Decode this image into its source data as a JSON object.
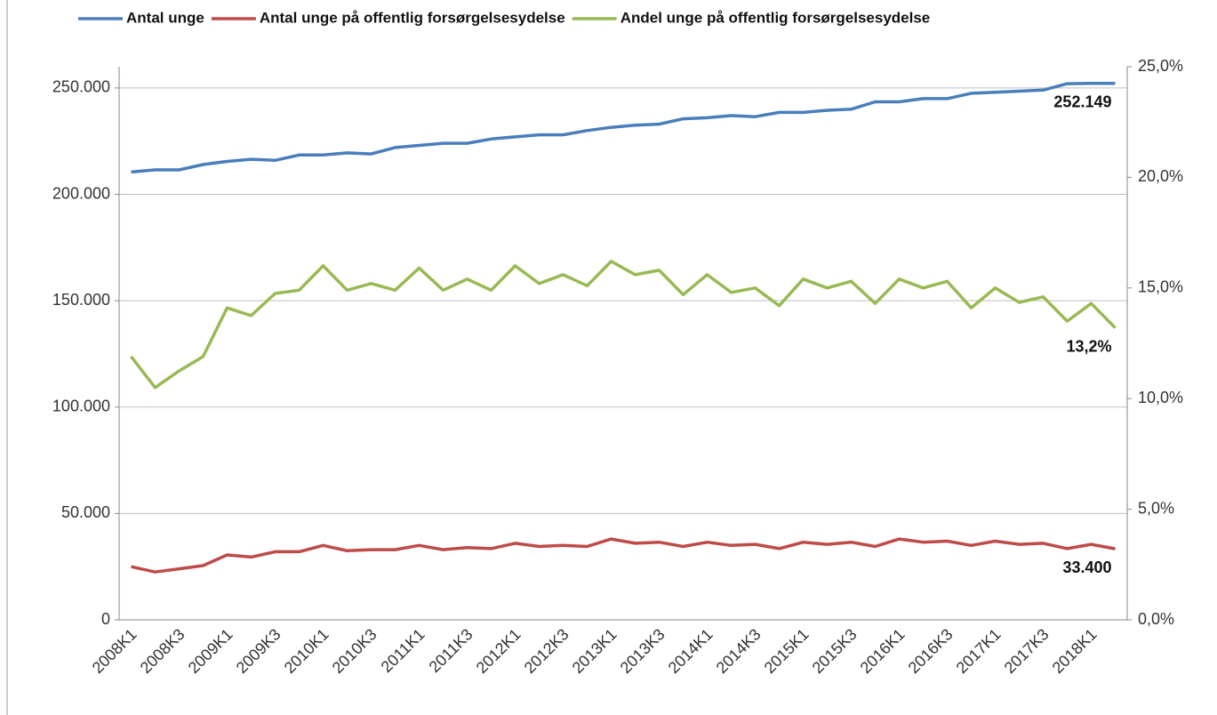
{
  "chart_data": {
    "type": "line",
    "categories": [
      "2008K1",
      null,
      "2008K3",
      null,
      "2009K1",
      null,
      "2009K3",
      null,
      "2010K1",
      null,
      "2010K3",
      null,
      "2011K1",
      null,
      "2011K3",
      null,
      "2012K1",
      null,
      "2012K3",
      null,
      "2013K1",
      null,
      "2013K3",
      null,
      "2014K1",
      null,
      "2014K3",
      null,
      "2015K1",
      null,
      "2015K3",
      null,
      "2016K1",
      null,
      "2016K3",
      null,
      "2017K1",
      null,
      "2017K3",
      null,
      "2018K1",
      null
    ],
    "series": [
      {
        "name": "Antal unge",
        "color": "#4a7ebb",
        "values": [
          210500,
          211500,
          211500,
          214000,
          215500,
          216500,
          216000,
          218500,
          218500,
          219500,
          219000,
          222000,
          223000,
          224000,
          224000,
          226000,
          227000,
          228000,
          228000,
          230000,
          231500,
          232500,
          233000,
          235500,
          236000,
          237000,
          236500,
          238500,
          238500,
          239500,
          240000,
          243500,
          243500,
          245000,
          245000,
          247500,
          248000,
          248500,
          249000,
          252000,
          252149,
          252149
        ],
        "value_labels": [
          null,
          null,
          null,
          null,
          null,
          null,
          null,
          null,
          null,
          null,
          null,
          null,
          null,
          null,
          null,
          null,
          null,
          null,
          null,
          null,
          null,
          null,
          null,
          null,
          null,
          null,
          null,
          null,
          null,
          null,
          null,
          null,
          null,
          null,
          null,
          null,
          null,
          null,
          null,
          null,
          null,
          "252.149"
        ]
      },
      {
        "name": "Antal unge på offentlig forsørgelsesydelse",
        "color": "#be4b48",
        "values": [
          25000,
          22500,
          24000,
          25500,
          30500,
          29500,
          32000,
          32000,
          35000,
          32500,
          33000,
          33000,
          35000,
          33000,
          34000,
          33500,
          36000,
          34500,
          35000,
          34500,
          38000,
          36000,
          36500,
          34500,
          36500,
          35000,
          35500,
          33500,
          36500,
          35500,
          36500,
          34500,
          38000,
          36500,
          37000,
          35000,
          37000,
          35500,
          36000,
          33500,
          35500,
          33400
        ],
        "value_labels": [
          null,
          null,
          null,
          null,
          null,
          null,
          null,
          null,
          null,
          null,
          null,
          null,
          null,
          null,
          null,
          null,
          null,
          null,
          null,
          null,
          null,
          null,
          null,
          null,
          null,
          null,
          null,
          null,
          null,
          null,
          null,
          null,
          null,
          null,
          null,
          null,
          null,
          null,
          null,
          null,
          null,
          "33.400"
        ]
      },
      {
        "name": "Andel unge på offentlig forsørgelsesydelse",
        "color": "#98b954",
        "axis": "y2",
        "values": [
          11.9,
          10.5,
          11.25,
          11.9,
          14.1,
          13.75,
          14.75,
          14.9,
          16.0,
          14.9,
          15.2,
          14.9,
          15.9,
          14.9,
          15.4,
          14.9,
          16.0,
          15.2,
          15.6,
          15.1,
          16.2,
          15.6,
          15.8,
          14.7,
          15.6,
          14.8,
          15.0,
          14.2,
          15.4,
          15.0,
          15.3,
          14.3,
          15.4,
          15.0,
          15.3,
          14.1,
          15.0,
          14.35,
          14.6,
          13.5,
          14.3,
          13.2
        ],
        "value_labels": [
          null,
          null,
          null,
          null,
          null,
          null,
          null,
          null,
          null,
          null,
          null,
          null,
          null,
          null,
          null,
          null,
          null,
          null,
          null,
          null,
          null,
          null,
          null,
          null,
          null,
          null,
          null,
          null,
          null,
          null,
          null,
          null,
          null,
          null,
          null,
          null,
          null,
          null,
          null,
          null,
          null,
          "13,2%"
        ]
      }
    ],
    "ylim": [
      0,
      260000
    ],
    "yticks": [
      0,
      {
        "value": 50000,
        "label": "50.000"
      },
      {
        "value": 100000,
        "label": "100.000"
      },
      {
        "value": 150000,
        "label": "150.000"
      },
      {
        "value": 200000,
        "label": "200.000"
      },
      {
        "value": 250000,
        "label": "250.000"
      }
    ],
    "y2lim": [
      0,
      25
    ],
    "y2ticks": [
      {
        "value": 0,
        "label": "0,0%"
      },
      {
        "value": 5,
        "label": "5,0%"
      },
      {
        "value": 10,
        "label": "10,0%"
      },
      {
        "value": 15,
        "label": "15,0%"
      },
      {
        "value": 20,
        "label": "20,0%"
      },
      {
        "value": 25,
        "label": "25,0%"
      }
    ],
    "grid": true,
    "legend": "top"
  }
}
